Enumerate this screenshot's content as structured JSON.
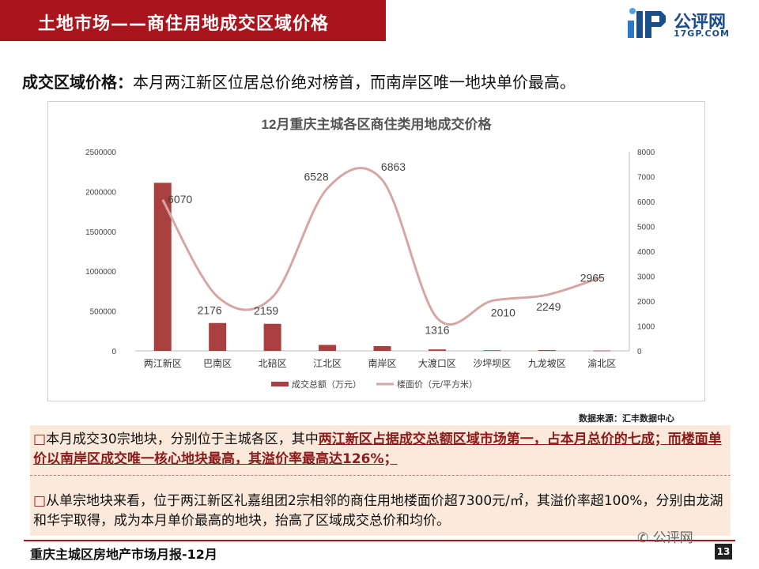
{
  "header": {
    "title": "土地市场——商住用地成交区域价格"
  },
  "logo": {
    "name": "公评网",
    "domain": "17GP.COM"
  },
  "headline": {
    "lead": "成交区域价格：",
    "text": "本月两江新区位居总价绝对榜首，而南岸区唯一地块单价最高。"
  },
  "source": "数据来源：汇丰数据中心",
  "paragraph1": {
    "bullet": "□",
    "plain": "本月成交30宗地块，分别位于主城各区，其中",
    "highlight": "两江新区占据成交总额区域市场第一，占本月总价的七成；而楼面单价以南岸区成交唯一核心地块最高，其溢价率最高达126%；"
  },
  "paragraph2": {
    "bullet": "□",
    "text": "从单宗地块来看，位于两江新区礼嘉组团2宗相邻的商住用地楼面价超7300元/㎡，其溢价率超100%，分别由龙湖和华宇取得，成为本月单价最高的地块，抬高了区域成交总价和均价。"
  },
  "footer": {
    "report": "重庆主城区房地产市场月报-12月",
    "page": "13",
    "wechat": "公评网"
  },
  "colors": {
    "brand": "#a8151c",
    "bar": "#a9403f",
    "line": "#d6a6a5",
    "panel": "#fbe9dc"
  },
  "chart_data": {
    "type": "bar+line",
    "title": "12月重庆主城各区商住类用地成交价格",
    "categories": [
      "两江新区",
      "巴南区",
      "北碚区",
      "江北区",
      "南岸区",
      "大渡口区",
      "沙坪坝区",
      "九龙坡区",
      "渝北区"
    ],
    "series": [
      {
        "name": "成交总额（万元）",
        "type": "bar",
        "axis": "left",
        "values": [
          2110000,
          350000,
          340000,
          75000,
          60000,
          18000,
          8000,
          10000,
          5000
        ]
      },
      {
        "name": "楼面价（元/平方米）",
        "type": "line",
        "axis": "right",
        "smooth": true,
        "values": [
          6070,
          2176,
          2159,
          6528,
          6863,
          1316,
          2010,
          2249,
          2965
        ]
      }
    ],
    "left_axis": {
      "min": 0,
      "max": 2500000,
      "ticks": [
        0,
        500000,
        1000000,
        1500000,
        2000000,
        2500000
      ]
    },
    "right_axis": {
      "min": 0,
      "max": 8000,
      "ticks": [
        0,
        1000,
        2000,
        3000,
        4000,
        5000,
        6000,
        7000,
        8000
      ]
    },
    "data_labels": [
      "6070",
      "2176",
      "2159",
      "6528",
      "6863",
      "1316",
      "2010",
      "2249",
      "2965"
    ],
    "legend": "bottom",
    "grid": false
  }
}
